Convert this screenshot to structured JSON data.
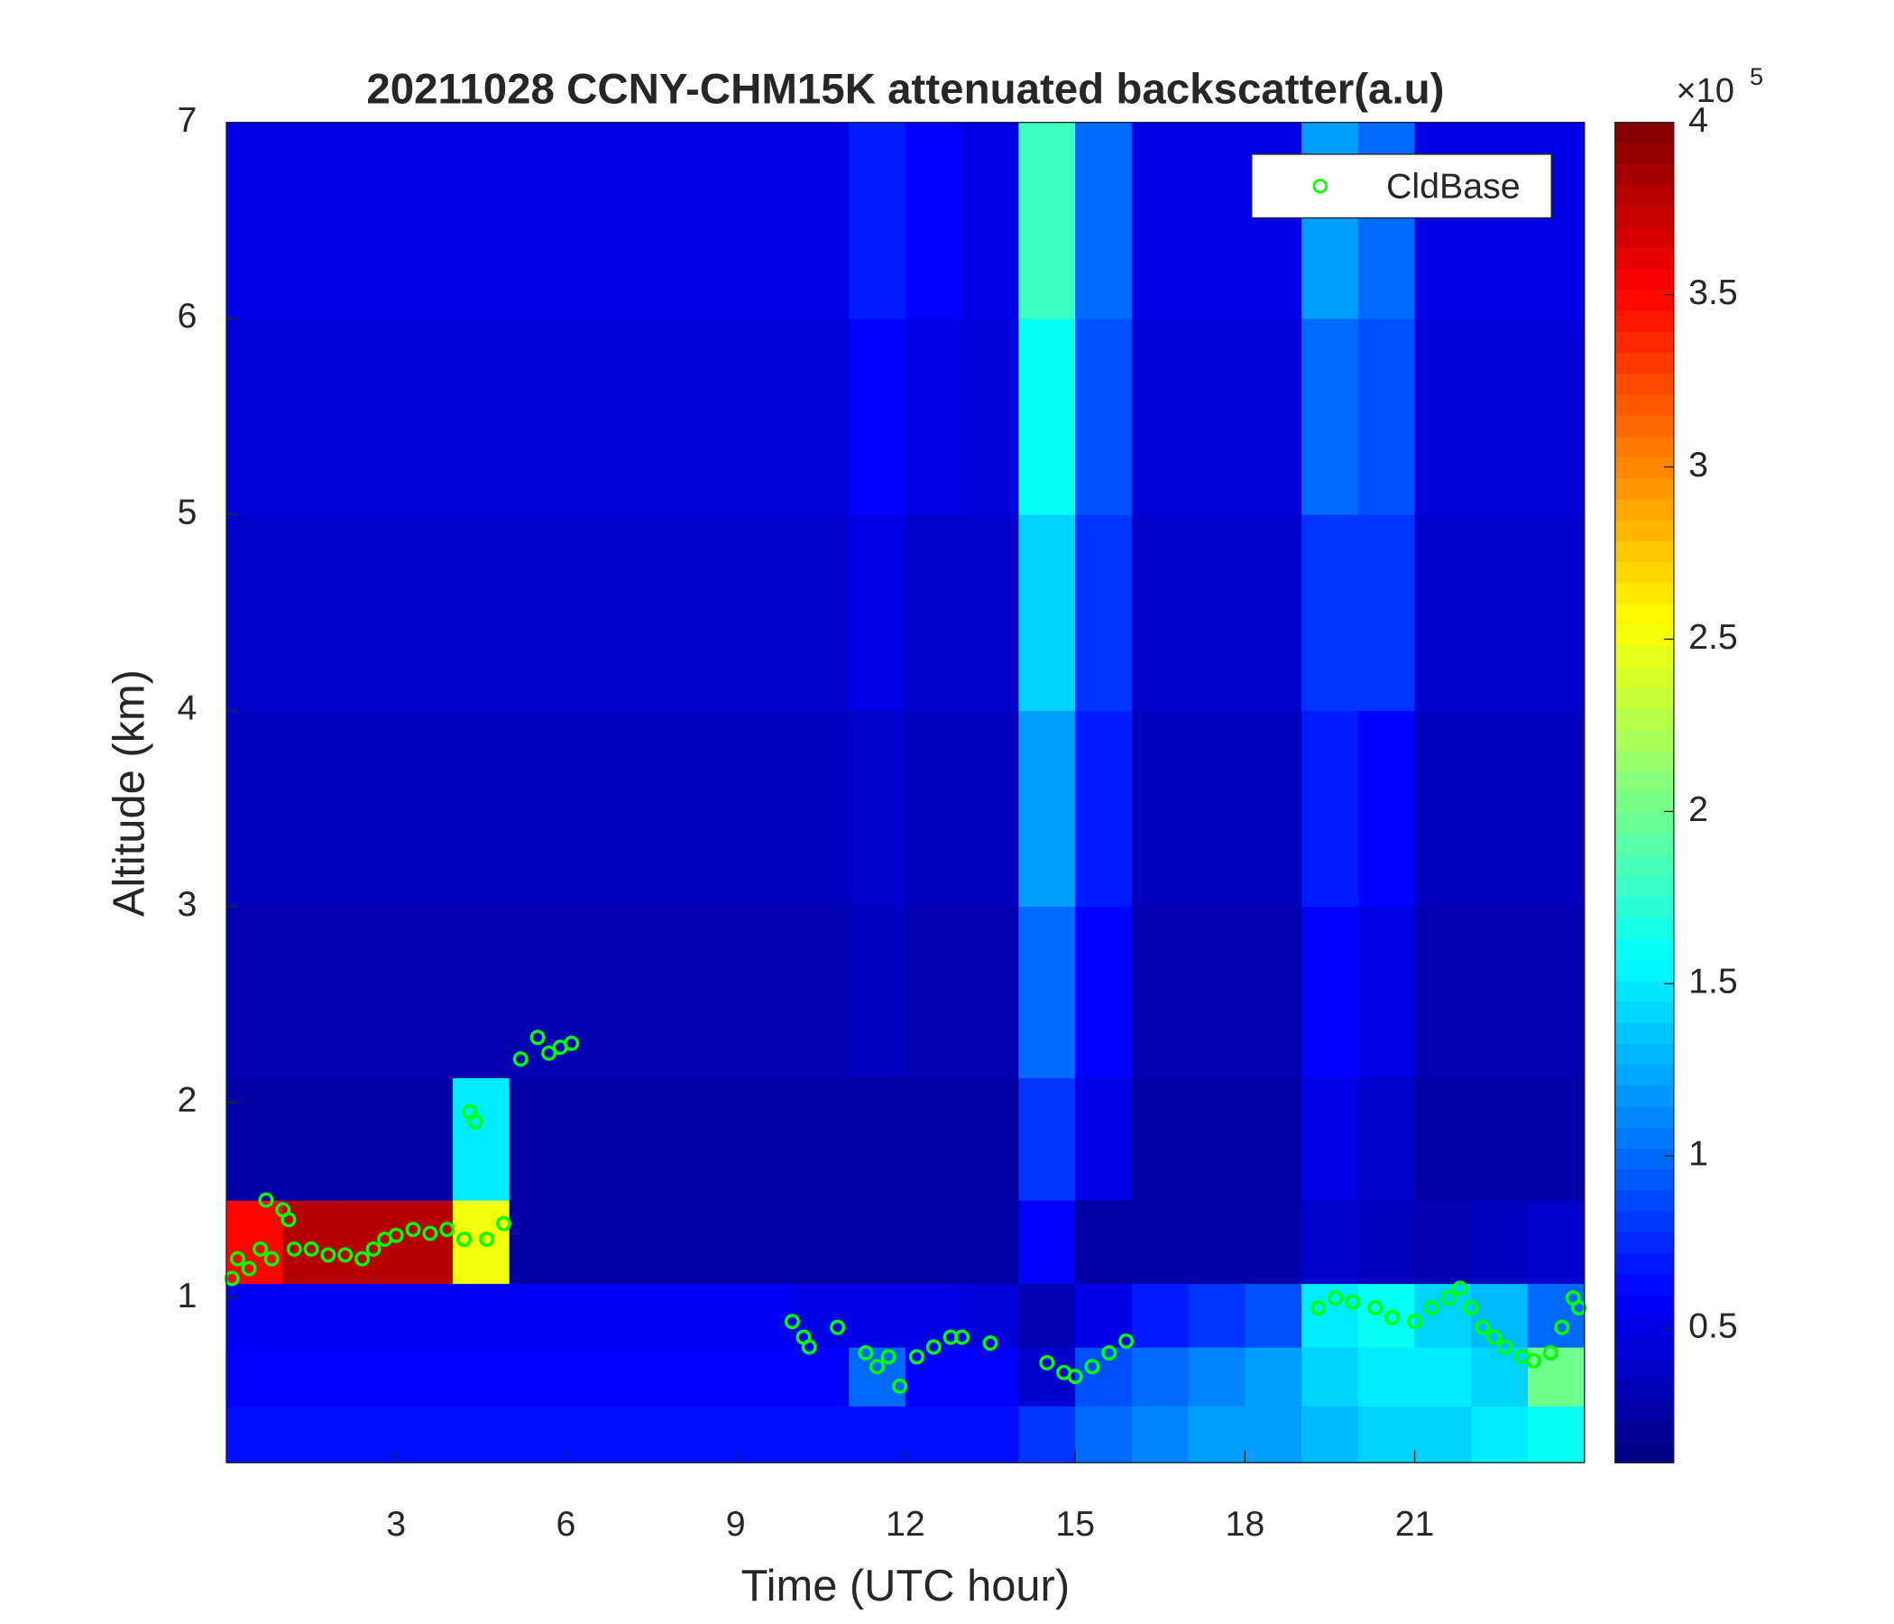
{
  "chart_data": {
    "type": "heatmap",
    "title": "20211028 CCNY-CHM15K attenuated backscatter(a.u)",
    "x_label": "Time (UTC hour)",
    "y_label": "Altitude (km)",
    "xlim": [
      0,
      24
    ],
    "xticks": [
      3,
      6,
      9,
      12,
      15,
      18,
      21
    ],
    "ylim": [
      0.16,
      7
    ],
    "yticks": [
      1,
      2,
      3,
      4,
      5,
      6,
      7
    ],
    "colormap": "jet",
    "clim": [
      0.11,
      4
    ],
    "cticks": [
      0.5,
      1,
      1.5,
      2,
      2.5,
      3,
      3.5,
      4
    ],
    "colorbar_multiplier": "×10",
    "colorbar_exponent": "5",
    "legend_position": "northeast",
    "x": [
      0.5,
      1.5,
      2.5,
      3.5,
      4.5,
      5.5,
      6.5,
      7.5,
      8.5,
      9.5,
      10.5,
      11.5,
      12.5,
      13.5,
      14.5,
      15.5,
      16.5,
      17.5,
      18.5,
      19.5,
      20.5,
      21.5,
      22.5,
      23.5
    ],
    "y": [
      0.3,
      0.6,
      0.9,
      1.25,
      1.75,
      2.5,
      3.5,
      4.5,
      5.5,
      6.5
    ],
    "z": [
      [
        0.65,
        0.65,
        0.65,
        0.65,
        0.65,
        0.65,
        0.65,
        0.65,
        0.65,
        0.65,
        0.65,
        0.65,
        0.65,
        0.65,
        0.8,
        1.0,
        1.1,
        1.2,
        1.2,
        1.3,
        1.4,
        1.4,
        1.5,
        1.6
      ],
      [
        0.6,
        0.6,
        0.6,
        0.6,
        0.6,
        0.6,
        0.6,
        0.6,
        0.6,
        0.6,
        0.6,
        1.0,
        0.6,
        0.6,
        0.4,
        0.9,
        1.0,
        1.1,
        1.2,
        1.4,
        1.5,
        1.5,
        1.4,
        2.0
      ],
      [
        0.55,
        0.55,
        0.55,
        0.55,
        0.55,
        0.55,
        0.55,
        0.55,
        0.55,
        0.55,
        0.5,
        0.5,
        0.5,
        0.45,
        0.3,
        0.5,
        0.7,
        0.8,
        0.9,
        1.5,
        1.6,
        1.4,
        1.3,
        1.0
      ],
      [
        3.5,
        3.8,
        3.8,
        3.8,
        2.5,
        0.25,
        0.25,
        0.25,
        0.25,
        0.25,
        0.25,
        0.25,
        0.25,
        0.25,
        0.6,
        0.25,
        0.25,
        0.25,
        0.25,
        0.4,
        0.35,
        0.3,
        0.35,
        0.4
      ],
      [
        0.25,
        0.25,
        0.25,
        0.25,
        1.5,
        0.25,
        0.25,
        0.25,
        0.25,
        0.25,
        0.25,
        0.25,
        0.25,
        0.25,
        0.8,
        0.5,
        0.25,
        0.25,
        0.25,
        0.5,
        0.4,
        0.25,
        0.25,
        0.25
      ],
      [
        0.3,
        0.3,
        0.3,
        0.3,
        0.3,
        0.3,
        0.3,
        0.3,
        0.3,
        0.3,
        0.3,
        0.35,
        0.3,
        0.3,
        1.0,
        0.6,
        0.3,
        0.3,
        0.3,
        0.6,
        0.5,
        0.3,
        0.3,
        0.3
      ],
      [
        0.35,
        0.35,
        0.35,
        0.35,
        0.35,
        0.35,
        0.35,
        0.35,
        0.35,
        0.35,
        0.35,
        0.4,
        0.35,
        0.35,
        1.2,
        0.7,
        0.35,
        0.35,
        0.35,
        0.7,
        0.6,
        0.35,
        0.35,
        0.35
      ],
      [
        0.4,
        0.4,
        0.4,
        0.4,
        0.4,
        0.4,
        0.4,
        0.4,
        0.4,
        0.4,
        0.4,
        0.5,
        0.4,
        0.4,
        1.4,
        0.8,
        0.4,
        0.4,
        0.4,
        0.8,
        0.8,
        0.4,
        0.4,
        0.4
      ],
      [
        0.45,
        0.45,
        0.45,
        0.45,
        0.45,
        0.45,
        0.45,
        0.45,
        0.45,
        0.45,
        0.45,
        0.6,
        0.5,
        0.45,
        1.6,
        0.9,
        0.45,
        0.45,
        0.45,
        1.0,
        0.9,
        0.45,
        0.45,
        0.45
      ],
      [
        0.5,
        0.5,
        0.5,
        0.5,
        0.5,
        0.5,
        0.5,
        0.5,
        0.5,
        0.5,
        0.5,
        0.7,
        0.6,
        0.5,
        1.8,
        1.0,
        0.5,
        0.5,
        0.5,
        1.2,
        1.0,
        0.5,
        0.5,
        0.5
      ]
    ],
    "series": [
      {
        "name": "CldBase",
        "type": "scatter",
        "color": "#00ff00",
        "x": [
          0.1,
          0.2,
          0.4,
          0.6,
          0.8,
          0.7,
          1.0,
          1.1,
          1.2,
          1.5,
          1.8,
          2.1,
          2.4,
          2.6,
          2.8,
          3.0,
          3.3,
          3.6,
          3.9,
          4.2,
          4.6,
          4.9,
          4.3,
          4.4,
          5.2,
          5.5,
          5.7,
          5.9,
          6.1,
          10.0,
          10.2,
          10.3,
          10.8,
          11.3,
          11.5,
          11.7,
          11.9,
          12.2,
          12.5,
          12.8,
          13.0,
          13.5,
          14.5,
          14.8,
          15.0,
          15.3,
          15.6,
          15.9,
          19.3,
          19.6,
          19.9,
          20.3,
          20.6,
          21.0,
          21.3,
          21.6,
          21.8,
          22.0,
          22.2,
          22.4,
          22.6,
          22.9,
          23.1,
          23.4,
          23.6,
          23.8,
          23.9
        ],
        "values": [
          1.1,
          1.2,
          1.15,
          1.25,
          1.2,
          1.5,
          1.45,
          1.4,
          1.25,
          1.25,
          1.22,
          1.22,
          1.2,
          1.25,
          1.3,
          1.32,
          1.35,
          1.33,
          1.35,
          1.3,
          1.3,
          1.38,
          1.95,
          1.9,
          2.22,
          2.33,
          2.25,
          2.28,
          2.3,
          0.88,
          0.8,
          0.75,
          0.85,
          0.72,
          0.65,
          0.7,
          0.55,
          0.7,
          0.75,
          0.8,
          0.8,
          0.77,
          0.67,
          0.62,
          0.6,
          0.65,
          0.72,
          0.78,
          0.95,
          1.0,
          0.98,
          0.95,
          0.9,
          0.88,
          0.95,
          1.0,
          1.05,
          0.95,
          0.85,
          0.8,
          0.75,
          0.7,
          0.68,
          0.72,
          0.85,
          1.0,
          0.95
        ]
      }
    ]
  }
}
